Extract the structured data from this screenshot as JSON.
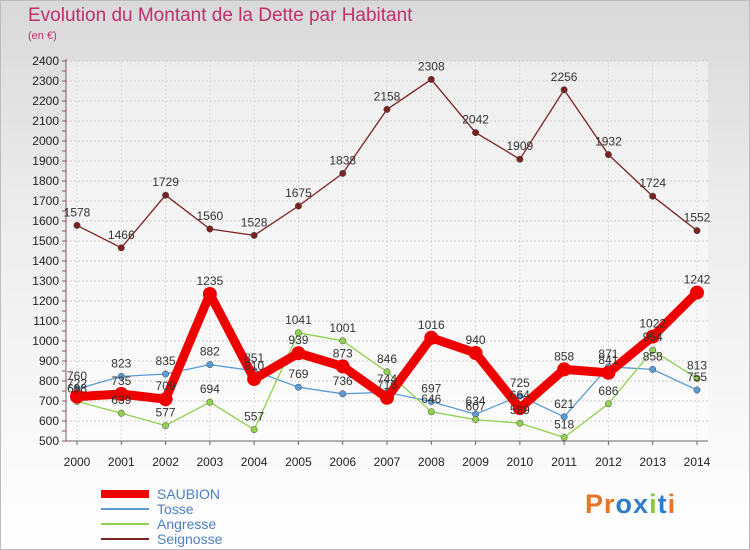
{
  "chart_data": {
    "type": "line",
    "title": "Evolution du Montant de la Dette par Habitant",
    "subtitle": "(en €)",
    "x": [
      2000,
      2001,
      2002,
      2003,
      2004,
      2005,
      2006,
      2007,
      2008,
      2009,
      2010,
      2011,
      2012,
      2013,
      2014
    ],
    "ylim": [
      500,
      2400
    ],
    "yticks": [
      500,
      600,
      700,
      800,
      900,
      1000,
      1100,
      1200,
      1300,
      1400,
      1500,
      1600,
      1700,
      1800,
      1900,
      2000,
      2100,
      2200,
      2300,
      2400
    ],
    "grid": true,
    "legend_position": "bottom-left",
    "series": [
      {
        "name": "SAUBION",
        "color": "#ee0000",
        "values": [
          722,
          735,
          709,
          1235,
          810,
          939,
          873,
          716,
          1016,
          940,
          664,
          858,
          841,
          1022,
          1242
        ]
      },
      {
        "name": "Tosse",
        "color": "#5b9bd5",
        "values": [
          760,
          823,
          835,
          882,
          851,
          769,
          736,
          744,
          697,
          634,
          725,
          621,
          871,
          858,
          755
        ]
      },
      {
        "name": "Angresse",
        "color": "#92d050",
        "values": [
          698,
          639,
          577,
          694,
          557,
          1041,
          1001,
          846,
          646,
          607,
          589,
          518,
          686,
          954,
          813
        ]
      },
      {
        "name": "Seignosse",
        "color": "#7b2121",
        "values": [
          1578,
          1466,
          1729,
          1560,
          1528,
          1675,
          1838,
          2158,
          2308,
          2042,
          1909,
          2256,
          1932,
          1724,
          1552
        ]
      }
    ]
  },
  "logo": {
    "text": "Proxiti",
    "letters": [
      "P",
      "r",
      "o",
      "x",
      "i",
      "t",
      "i"
    ]
  }
}
